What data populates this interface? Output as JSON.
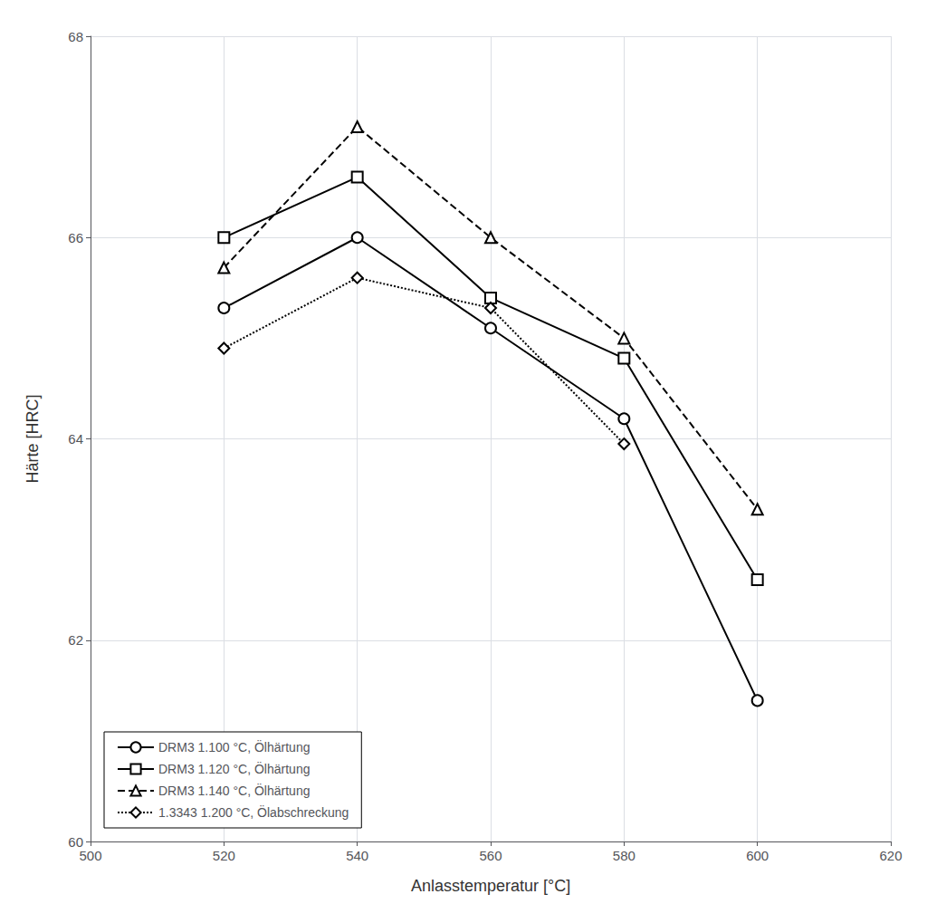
{
  "chart_data": {
    "type": "line",
    "xlabel": "Anlasstemperatur [°C]",
    "ylabel": "Härte [HRC]",
    "xlim": [
      500,
      620
    ],
    "ylim": [
      60,
      68
    ],
    "xticks": [
      500,
      520,
      540,
      560,
      580,
      600,
      620
    ],
    "yticks": [
      60,
      62,
      64,
      66,
      68
    ],
    "grid": true,
    "legend": "lower left",
    "series": [
      {
        "name": "DRM3 1.100 °C, Ölhärtung",
        "color": "#000000",
        "marker": "circle",
        "line_style": "solid",
        "x": [
          520,
          540,
          560,
          580,
          600
        ],
        "values": [
          65.3,
          66.0,
          65.1,
          64.2,
          61.4
        ]
      },
      {
        "name": "DRM3 1.120 °C, Ölhärtung",
        "color": "#000000",
        "marker": "square",
        "line_style": "solid",
        "x": [
          520,
          540,
          560,
          580,
          600
        ],
        "values": [
          66.0,
          66.6,
          65.4,
          64.8,
          62.6
        ]
      },
      {
        "name": "DRM3 1.140 °C, Ölhärtung",
        "color": "#000000",
        "marker": "triangle",
        "line_style": "dashed",
        "x": [
          520,
          540,
          560,
          580,
          600
        ],
        "values": [
          65.7,
          67.1,
          66.0,
          65.0,
          63.3
        ]
      },
      {
        "name": "1.3343 1.200 °C, Ölabschreckung",
        "color": "#000000",
        "marker": "diamond",
        "line_style": "dotted",
        "x": [
          520,
          540,
          560,
          580
        ],
        "values": [
          64.9,
          65.6,
          65.3,
          63.95
        ]
      }
    ]
  }
}
